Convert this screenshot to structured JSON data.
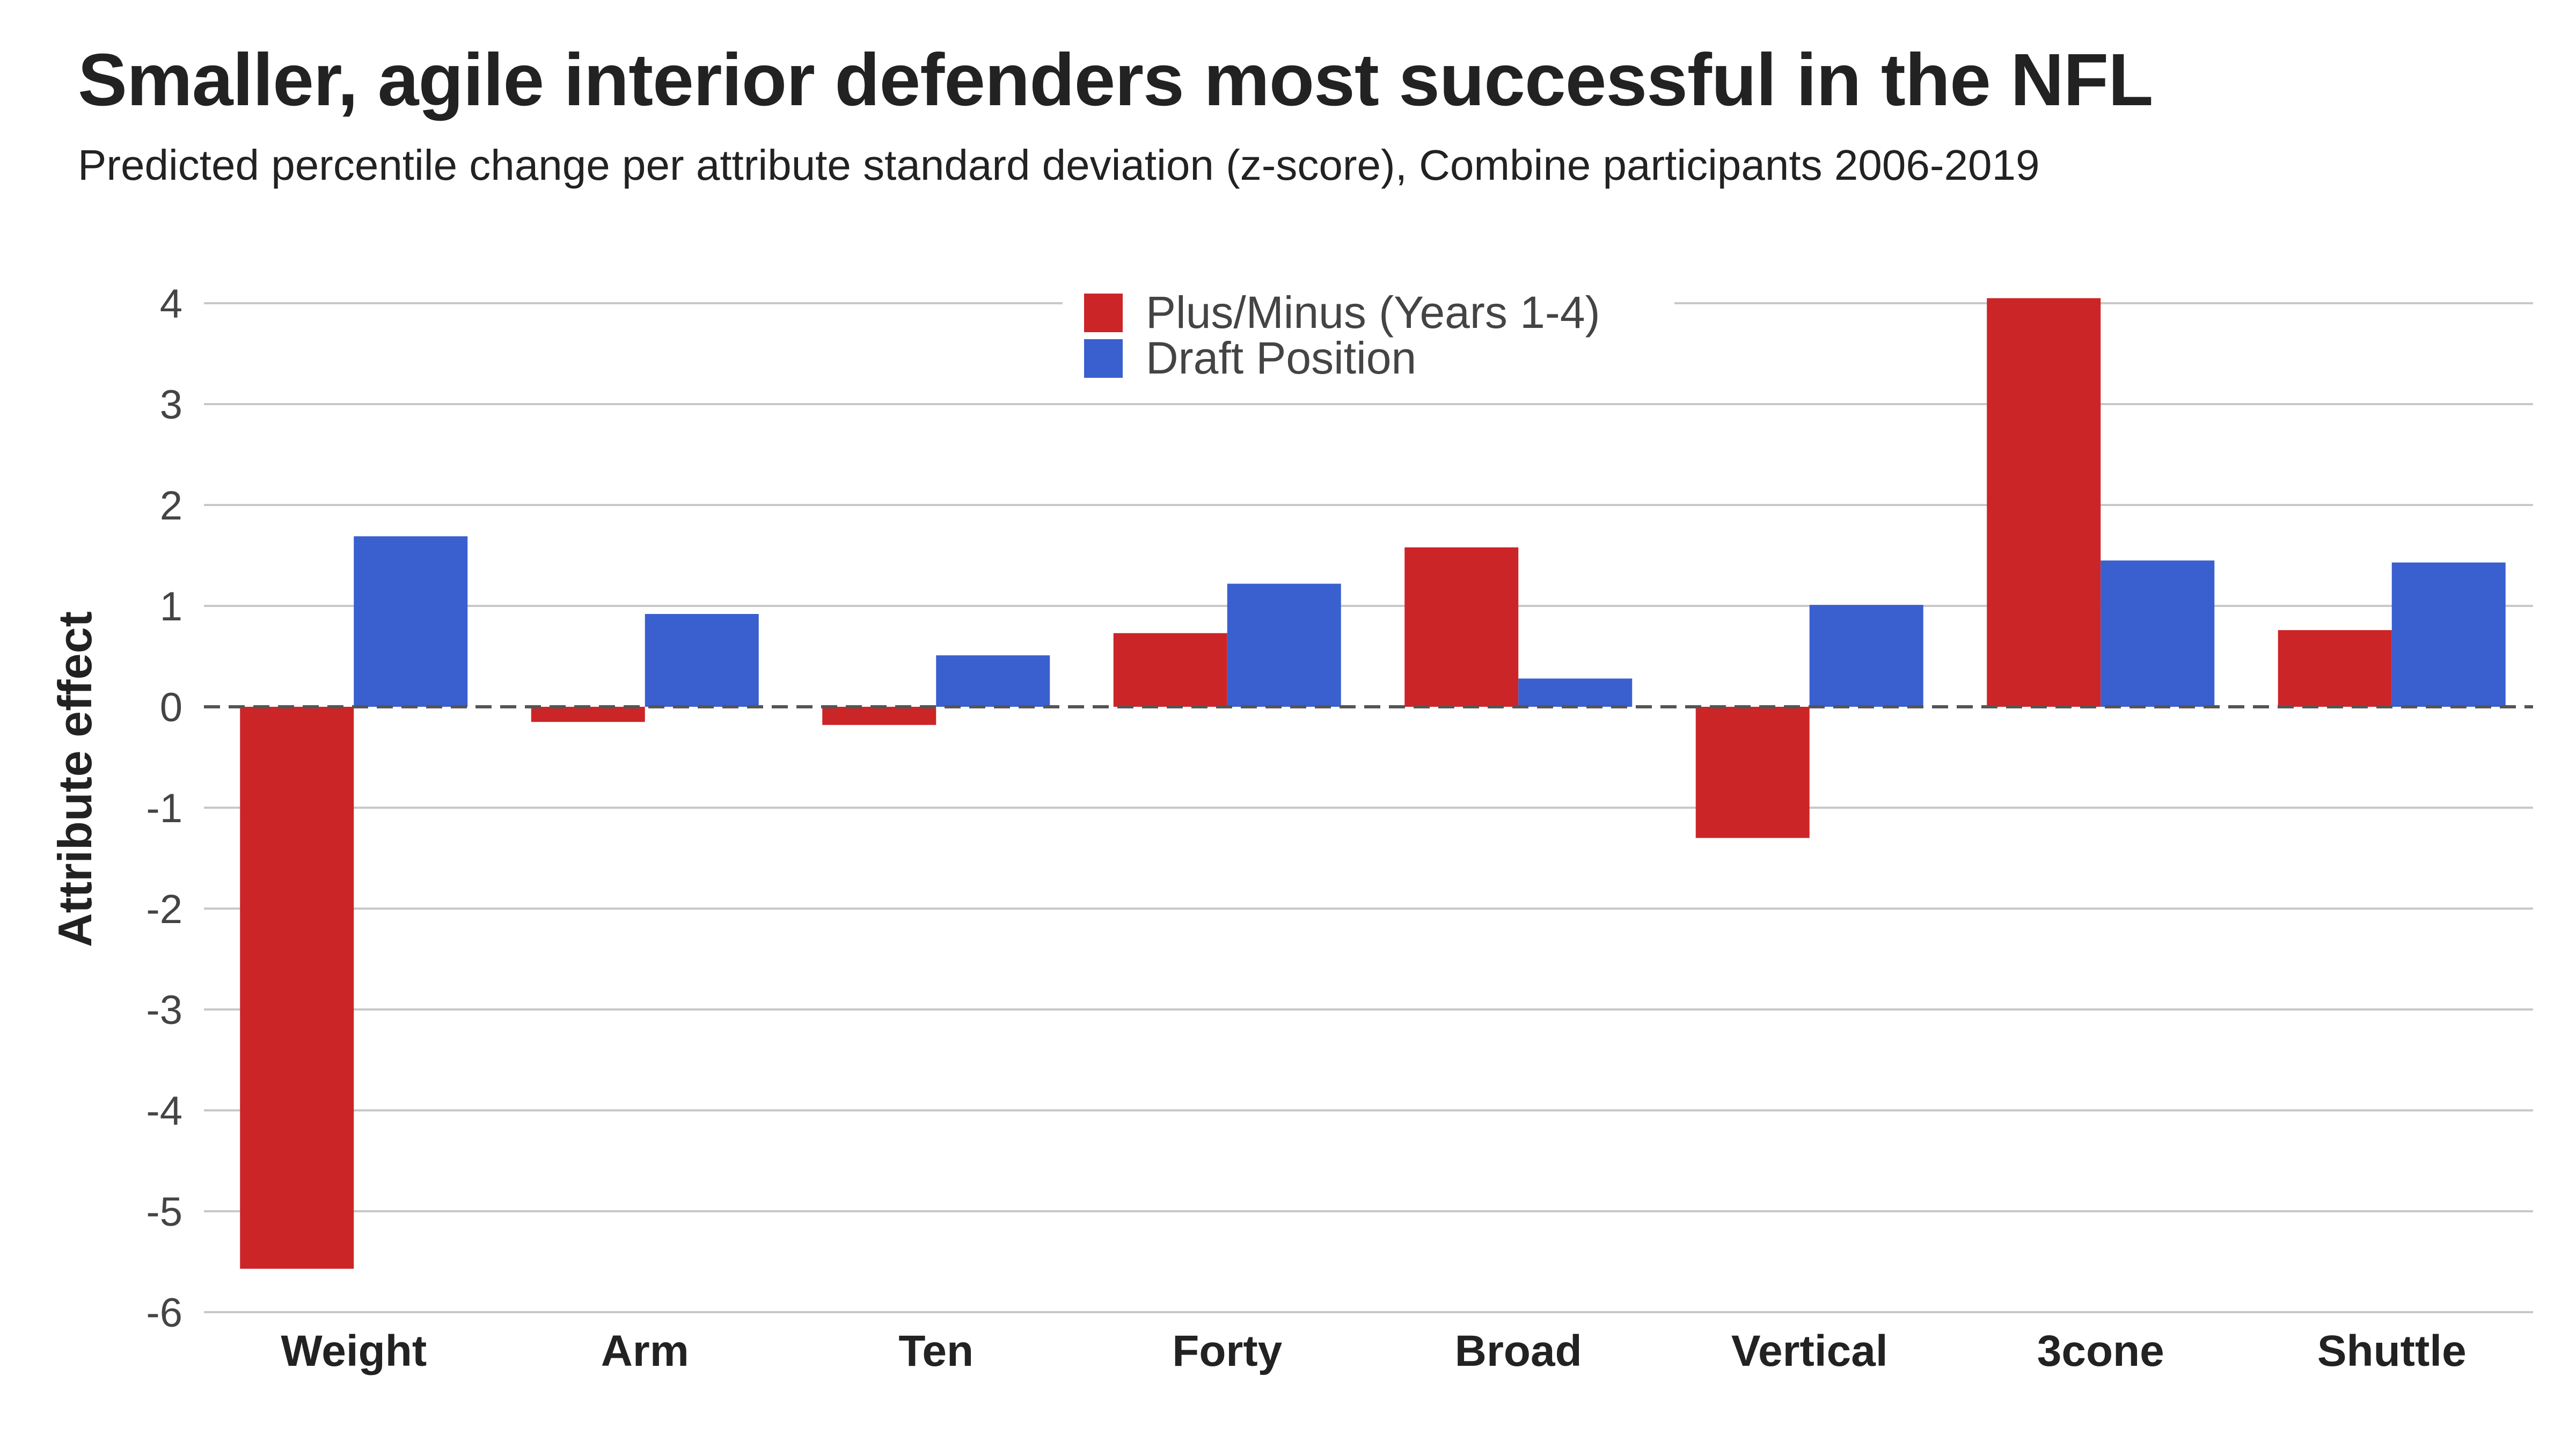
{
  "header": {
    "title": "Smaller, agile interior defenders most successful in the NFL",
    "subtitle": "Predicted percentile change per attribute standard deviation (z-score), Combine participants 2006-2019"
  },
  "chart_data": {
    "type": "bar",
    "title": "Smaller, agile interior defenders most successful in the NFL",
    "subtitle": "Predicted percentile change per attribute standard deviation (z-score), Combine participants 2006-2019",
    "xlabel": "",
    "ylabel": "Attribute effect",
    "ylim": [
      -6,
      4
    ],
    "yticks": [
      4,
      3,
      2,
      1,
      0,
      -1,
      -2,
      -3,
      -4,
      -5,
      -6
    ],
    "grid": true,
    "zero_line": "dashed",
    "legend_position": "top-center",
    "categories": [
      "Weight",
      "Arm",
      "Ten",
      "Forty",
      "Broad",
      "Vertical",
      "3cone",
      "Shuttle"
    ],
    "series": [
      {
        "name": "Plus/Minus (Years 1-4)",
        "color": "#cc2528",
        "values": [
          -5.57,
          -0.15,
          -0.18,
          0.73,
          1.58,
          -1.3,
          4.05,
          0.76
        ]
      },
      {
        "name": "Draft Position",
        "color": "#3a5fcf",
        "values": [
          1.69,
          0.92,
          0.51,
          1.22,
          0.28,
          1.01,
          1.45,
          1.43
        ]
      }
    ]
  }
}
